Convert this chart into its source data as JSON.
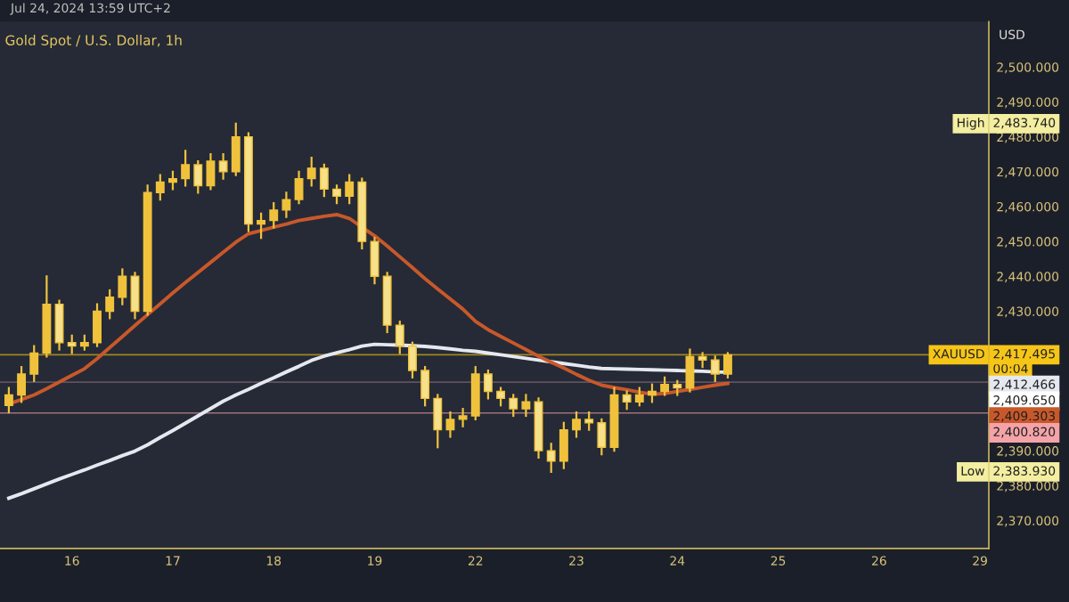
{
  "chart_data": {
    "type": "candlestick",
    "title": "Gold Spot / U.S. Dollar, 1h",
    "ylabel": "USD",
    "annotations": [
      "Jul 24, 2024 13:59 UTC+2",
      "00:04",
      "2,483.740",
      "High",
      "2,417.495",
      "XAUUSD",
      "2,412.466",
      "2,409.650",
      "2,409.303",
      "2,400.820",
      "2,383.930",
      "Low"
    ],
    "color": "#f0c23c",
    "categories": [
      null,
      null,
      null,
      null,
      null,
      "16",
      null,
      null,
      null,
      null,
      null,
      null,
      null,
      "17",
      null,
      null,
      null,
      null,
      null,
      null,
      null,
      "18",
      null,
      null,
      null,
      null,
      null,
      null,
      null,
      "19",
      null,
      null,
      null,
      null,
      null,
      null,
      null,
      "22",
      null,
      null,
      null,
      null,
      null,
      null,
      null,
      "23",
      null,
      null,
      null,
      null,
      null,
      null,
      null,
      "24",
      null,
      null,
      null,
      null,
      null,
      null,
      null,
      "25",
      null,
      null,
      null,
      null,
      null,
      null,
      null,
      "26",
      null,
      null,
      null,
      null,
      null,
      null,
      null,
      "29"
    ],
    "ohlc": [
      [
        2403,
        2408,
        2401,
        2406
      ],
      [
        2406,
        2414,
        2404,
        2412
      ],
      [
        2412,
        2420,
        2410,
        2418
      ],
      [
        2418,
        2440,
        2417,
        2432
      ],
      [
        2432,
        2433,
        2419,
        2421
      ],
      [
        2421,
        2423,
        2418,
        2420
      ],
      [
        2420,
        2423,
        2419,
        2421
      ],
      [
        2421,
        2432,
        2420,
        2430
      ],
      [
        2430,
        2436,
        2428,
        2434
      ],
      [
        2434,
        2442,
        2432,
        2440
      ],
      [
        2440,
        2441,
        2428,
        2430
      ],
      [
        2430,
        2466,
        2429,
        2464
      ],
      [
        2464,
        2469,
        2462,
        2467
      ],
      [
        2467,
        2470,
        2465,
        2468
      ],
      [
        2468,
        2476,
        2466,
        2472
      ],
      [
        2472,
        2473,
        2464,
        2466
      ],
      [
        2466,
        2475,
        2465,
        2473
      ],
      [
        2473,
        2475,
        2468,
        2470
      ],
      [
        2470,
        2483.74,
        2469,
        2480
      ],
      [
        2480,
        2481,
        2453,
        2455
      ],
      [
        2455,
        2458,
        2451,
        2456
      ],
      [
        2456,
        2461,
        2454,
        2459
      ],
      [
        2459,
        2464,
        2457,
        2462
      ],
      [
        2462,
        2470,
        2461,
        2468
      ],
      [
        2468,
        2474,
        2466,
        2471
      ],
      [
        2471,
        2472,
        2463,
        2465
      ],
      [
        2465,
        2466,
        2461,
        2463
      ],
      [
        2463,
        2469,
        2461,
        2467
      ],
      [
        2467,
        2468,
        2448,
        2450
      ],
      [
        2450,
        2451,
        2438,
        2440
      ],
      [
        2440,
        2441,
        2424,
        2426
      ],
      [
        2426,
        2427,
        2418,
        2420
      ],
      [
        2420,
        2421,
        2411,
        2413
      ],
      [
        2413,
        2414,
        2403,
        2405
      ],
      [
        2405,
        2406,
        2391,
        2396
      ],
      [
        2396,
        2401,
        2394,
        2399
      ],
      [
        2399,
        2402,
        2397,
        2400
      ],
      [
        2400,
        2414,
        2399,
        2412
      ],
      [
        2412,
        2413,
        2405,
        2407
      ],
      [
        2407,
        2408,
        2403,
        2405
      ],
      [
        2405,
        2406,
        2400,
        2402
      ],
      [
        2402,
        2406,
        2400,
        2404
      ],
      [
        2404,
        2405,
        2388,
        2390
      ],
      [
        2390,
        2392,
        2383.93,
        2387
      ],
      [
        2387,
        2398,
        2385,
        2396
      ],
      [
        2396,
        2401,
        2394,
        2399
      ],
      [
        2399,
        2401,
        2396,
        2398
      ],
      [
        2398,
        2399,
        2389,
        2391
      ],
      [
        2391,
        2408,
        2390,
        2406
      ],
      [
        2406,
        2407,
        2402,
        2404
      ],
      [
        2404,
        2408,
        2403,
        2406
      ],
      [
        2406,
        2409,
        2404,
        2407
      ],
      [
        2407,
        2411,
        2406,
        2409
      ],
      [
        2409,
        2410,
        2406,
        2408
      ],
      [
        2408,
        2419,
        2407,
        2417
      ],
      [
        2417,
        2418,
        2414,
        2416
      ],
      [
        2416,
        2417,
        2410,
        2412
      ],
      [
        2412,
        2418,
        2411,
        2417.495
      ],
      null,
      null,
      null,
      null,
      null,
      null,
      null,
      null,
      null,
      null,
      null,
      null,
      null,
      null,
      null,
      null,
      null,
      null,
      null,
      null
    ],
    "series": [
      {
        "type": "line",
        "color": "#e6e8f0",
        "values": [
          2376.4,
          2377.7,
          2379.1,
          2380.5,
          2381.9,
          2383.2,
          2384.5,
          2385.9,
          2387.2,
          2388.6,
          2389.9,
          2391.7,
          2393.8,
          2395.8,
          2397.9,
          2400,
          2402.1,
          2404.2,
          2406,
          2407.6,
          2409.3,
          2410.9,
          2412.6,
          2414.2,
          2415.9,
          2417.1,
          2418.1,
          2419,
          2420,
          2420.5,
          2420.4,
          2420.3,
          2420.1,
          2419.9,
          2419.6,
          2419.2,
          2418.8,
          2418.5,
          2418,
          2417.5,
          2417,
          2416.5,
          2416,
          2415.5,
          2415,
          2414.5,
          2414,
          2413.6,
          2413.5,
          2413.4,
          2413.3,
          2413.2,
          2413.1,
          2413,
          2412.9,
          2412.8,
          2412.6,
          2412.5,
          null,
          null,
          null,
          null,
          null,
          null,
          null,
          null,
          null,
          null,
          null,
          null,
          null,
          null,
          null,
          null,
          null,
          null,
          null,
          null
        ]
      },
      {
        "type": "line",
        "color": "#c8582a",
        "values": [
          2403.4,
          2404.7,
          2406,
          2407.8,
          2409.7,
          2411.6,
          2413.5,
          2416.4,
          2419.6,
          2422.7,
          2425.9,
          2429,
          2432.1,
          2435.2,
          2438.2,
          2441.1,
          2444,
          2446.9,
          2449.8,
          2452.2,
          2453.1,
          2454.1,
          2455,
          2456,
          2456.6,
          2457.2,
          2457.7,
          2456.6,
          2454.1,
          2451.6,
          2448.7,
          2445.6,
          2442.5,
          2439.3,
          2436.4,
          2433.5,
          2430.6,
          2427.1,
          2424.7,
          2422.8,
          2420.9,
          2419,
          2417.1,
          2415.4,
          2413.7,
          2411.9,
          2410.2,
          2408.8,
          2408.1,
          2407.5,
          2406.8,
          2406.2,
          2406.4,
          2407,
          2407.6,
          2408.2,
          2408.8,
          2409.3,
          null,
          null,
          null,
          null,
          null,
          null,
          null,
          null,
          null,
          null,
          null,
          null,
          null,
          null,
          null,
          null,
          null,
          null,
          null,
          null
        ]
      }
    ],
    "ylim": [
      2362,
      2513
    ],
    "yticks": [
      {
        "value": 2370,
        "label": "2,370.000"
      },
      {
        "value": 2380,
        "label": "2,380.000"
      },
      {
        "value": 2390,
        "label": "2,390.000"
      },
      {
        "value": 2430,
        "label": "2,430.000"
      },
      {
        "value": 2440,
        "label": "2,440.000"
      },
      {
        "value": 2450,
        "label": "2,450.000"
      },
      {
        "value": 2460,
        "label": "2,460.000"
      },
      {
        "value": 2470,
        "label": "2,470.000"
      },
      {
        "value": 2480,
        "label": "2,480.000"
      },
      {
        "value": 2490,
        "label": "2,490.000"
      },
      {
        "value": 2500,
        "label": "2,500.000"
      }
    ],
    "ref_lines": [
      {
        "axis": "y",
        "value": 2417.495,
        "color": "#f5c518",
        "line_style": "solid"
      },
      {
        "axis": "y",
        "value": 2409.65,
        "color": "#8a6a7a",
        "line_style": "solid"
      },
      {
        "axis": "y",
        "value": 2400.82,
        "color": "#f4a3a8",
        "line_style": "solid"
      }
    ],
    "grid": false
  }
}
